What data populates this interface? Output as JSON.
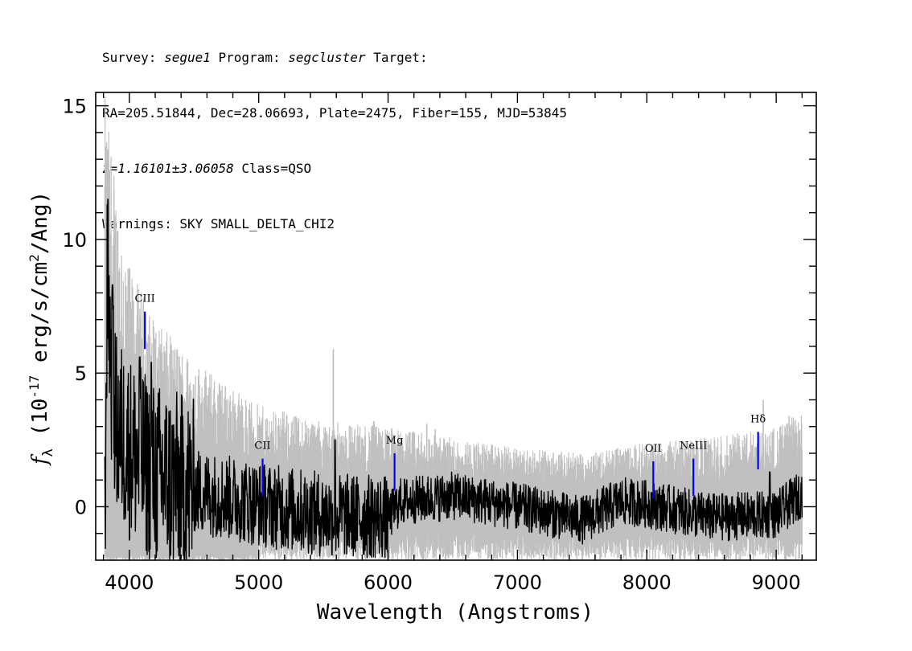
{
  "header": {
    "survey_label": "Survey:",
    "survey": "segue1",
    "program_label": "Program:",
    "program": "segcluster",
    "target_label": "Target:",
    "line2": "RA=205.51844, Dec=28.06693, Plate=2475, Fiber=155, MJD=53845",
    "redshift": "z=1.16101±3.06058",
    "class": "Class=QSO",
    "warnings": "Warnings: SKY SMALL_DELTA_CHI2"
  },
  "chart_data": {
    "type": "line",
    "xlabel": "Wavelength (Angstroms)",
    "ylabel": "f_λ (10^-17 erg/s/cm^2/Ang)",
    "xlim": [
      3740,
      9310
    ],
    "ylim": [
      -2.0,
      15.5
    ],
    "x_ticks": [
      4000,
      5000,
      6000,
      7000,
      8000,
      9000
    ],
    "y_ticks": [
      0,
      5,
      10,
      15
    ],
    "series": [
      {
        "role": "error",
        "color": "#c0c0c0",
        "envelope": [
          {
            "x": 3810,
            "y": 15.5
          },
          {
            "x": 3900,
            "y": 12.0
          },
          {
            "x": 4000,
            "y": 9.0
          },
          {
            "x": 4200,
            "y": 7.0
          },
          {
            "x": 4500,
            "y": 5.5
          },
          {
            "x": 5000,
            "y": 3.8
          },
          {
            "x": 5500,
            "y": 3.2
          },
          {
            "x": 6000,
            "y": 3.0
          },
          {
            "x": 6500,
            "y": 2.6
          },
          {
            "x": 7000,
            "y": 2.2
          },
          {
            "x": 7500,
            "y": 2.0
          },
          {
            "x": 8000,
            "y": 2.4
          },
          {
            "x": 8500,
            "y": 2.6
          },
          {
            "x": 9000,
            "y": 3.0
          },
          {
            "x": 9200,
            "y": 3.6
          }
        ],
        "spikes": [
          {
            "x": 5577,
            "y": 5.9
          },
          {
            "x": 5890,
            "y": 3.2
          },
          {
            "x": 6300,
            "y": 3.1
          },
          {
            "x": 6364,
            "y": 2.9
          },
          {
            "x": 8900,
            "y": 4.0
          },
          {
            "x": 9100,
            "y": 3.4
          }
        ]
      },
      {
        "role": "flux",
        "color": "#000000",
        "baseline": [
          {
            "x": 3810,
            "y": -1.0
          },
          {
            "x": 3830,
            "y": 9.0
          },
          {
            "x": 3860,
            "y": 5.0
          },
          {
            "x": 3900,
            "y": 3.0
          },
          {
            "x": 4000,
            "y": 2.2
          },
          {
            "x": 4200,
            "y": 1.2
          },
          {
            "x": 4500,
            "y": 0.6
          },
          {
            "x": 5000,
            "y": 0.1
          },
          {
            "x": 5500,
            "y": -0.3
          },
          {
            "x": 6000,
            "y": -0.4
          },
          {
            "x": 6100,
            "y": 0.2
          },
          {
            "x": 6500,
            "y": 0.4
          },
          {
            "x": 7000,
            "y": 0.0
          },
          {
            "x": 7500,
            "y": -0.5
          },
          {
            "x": 7800,
            "y": 0.2
          },
          {
            "x": 8000,
            "y": 0.1
          },
          {
            "x": 8500,
            "y": -0.4
          },
          {
            "x": 9000,
            "y": -0.3
          },
          {
            "x": 9200,
            "y": 0.5
          }
        ],
        "peaks": [
          {
            "x": 3835,
            "y": 11.5
          },
          {
            "x": 3870,
            "y": 8.3
          },
          {
            "x": 4080,
            "y": 5.6
          },
          {
            "x": 4170,
            "y": 5.4
          },
          {
            "x": 5590,
            "y": 2.5
          },
          {
            "x": 8950,
            "y": 1.3
          }
        ]
      }
    ],
    "line_markers": [
      {
        "label": "CIII",
        "x": 4120,
        "y_low": 5.9,
        "y_high": 7.3,
        "color": "#0000ff"
      },
      {
        "label": "CII",
        "x": 5030,
        "y_low": 0.4,
        "y_high": 1.8,
        "color": "#0000ff"
      },
      {
        "label": "Mg",
        "x": 6050,
        "y_low": 0.6,
        "y_high": 2.0,
        "color": "#0000ff"
      },
      {
        "label": "OII",
        "x": 8050,
        "y_low": 0.3,
        "y_high": 1.7,
        "color": "#0000ff"
      },
      {
        "label": "NeIII",
        "x": 8360,
        "y_low": 0.4,
        "y_high": 1.8,
        "color": "#0000ff"
      },
      {
        "label": "Hδ",
        "x": 8860,
        "y_low": 1.4,
        "y_high": 2.8,
        "color": "#0000ff"
      }
    ]
  }
}
